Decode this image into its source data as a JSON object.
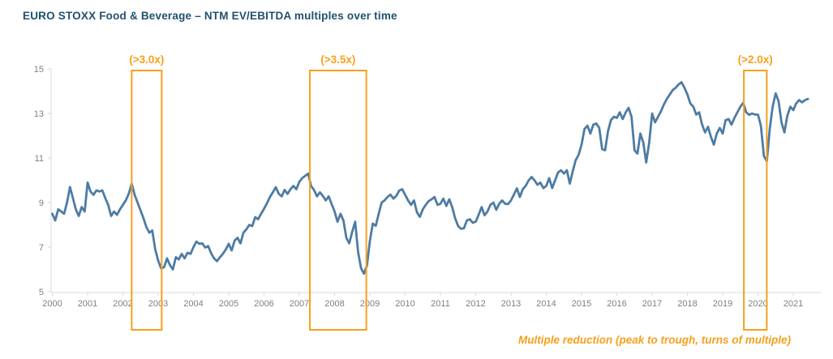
{
  "page": {
    "title": "EURO STOXX Food & Beverage – NTM EV/EBITDA multiples over time",
    "footnote": "Multiple reduction (peak to trough, turns of multiple)"
  },
  "colors": {
    "title": "#20516f",
    "line": "#4d7ca4",
    "orange": "#f7a01b",
    "axis": "#d9d9d9",
    "tick_label": "#7f7f7f"
  },
  "chart_data": {
    "type": "line",
    "title": "EURO STOXX Food & Beverage – NTM EV/EBITDA multiples over time",
    "xlabel": "",
    "ylabel": "",
    "ylim": [
      5,
      15
    ],
    "yticks": [
      5,
      7,
      9,
      11,
      13,
      15
    ],
    "xticks": [
      2000,
      2001,
      2002,
      2003,
      2004,
      2005,
      2006,
      2007,
      2008,
      2009,
      2010,
      2011,
      2012,
      2013,
      2014,
      2015,
      2016,
      2017,
      2018,
      2019,
      2020,
      2021
    ],
    "grid": false,
    "legend": false,
    "series": [
      {
        "name": "EURO STOXX Food & Beverage NTM EV/EBITDA multiple",
        "x_monthly_from": 2000,
        "values": [
          8.5,
          8.2,
          8.7,
          8.6,
          8.5,
          9.0,
          9.7,
          9.2,
          8.7,
          8.4,
          8.8,
          8.6,
          9.9,
          9.5,
          9.35,
          9.55,
          9.5,
          9.55,
          9.2,
          8.9,
          8.4,
          8.6,
          8.45,
          8.7,
          8.9,
          9.1,
          9.4,
          9.85,
          9.35,
          9.0,
          8.65,
          8.3,
          7.9,
          7.65,
          7.75,
          6.9,
          6.4,
          6.05,
          6.1,
          6.5,
          6.2,
          6.0,
          6.55,
          6.45,
          6.7,
          6.5,
          6.75,
          6.7,
          7.0,
          7.25,
          7.15,
          7.17,
          6.98,
          7.05,
          6.73,
          6.5,
          6.37,
          6.55,
          6.7,
          6.9,
          7.15,
          6.85,
          7.3,
          7.42,
          7.17,
          7.65,
          7.8,
          8.0,
          7.95,
          8.35,
          8.25,
          8.5,
          8.72,
          8.97,
          9.25,
          9.46,
          9.69,
          9.4,
          9.28,
          9.57,
          9.39,
          9.6,
          9.75,
          9.6,
          9.93,
          10.1,
          10.2,
          10.3,
          9.75,
          9.57,
          9.28,
          9.46,
          9.3,
          9.1,
          9.28,
          8.93,
          8.6,
          8.14,
          8.5,
          8.2,
          7.42,
          7.17,
          7.7,
          8.14,
          6.78,
          6.06,
          5.81,
          6.17,
          7.28,
          8.06,
          7.96,
          8.5,
          9.0,
          9.1,
          9.25,
          9.36,
          9.18,
          9.3,
          9.54,
          9.6,
          9.35,
          9.1,
          8.9,
          9.1,
          8.57,
          8.36,
          8.7,
          8.9,
          9.07,
          9.15,
          9.25,
          8.9,
          8.95,
          9.18,
          8.85,
          9.15,
          8.8,
          8.3,
          7.95,
          7.82,
          7.85,
          8.2,
          8.25,
          8.1,
          8.14,
          8.45,
          8.8,
          8.43,
          8.6,
          8.9,
          9.0,
          8.68,
          8.95,
          9.1,
          8.95,
          8.93,
          9.1,
          9.36,
          9.64,
          9.25,
          9.6,
          9.75,
          10.0,
          10.15,
          10.0,
          9.8,
          9.9,
          9.65,
          9.75,
          10.1,
          9.65,
          10.0,
          10.35,
          10.45,
          10.3,
          10.45,
          9.85,
          10.4,
          10.9,
          11.15,
          11.6,
          12.3,
          12.45,
          12.1,
          12.5,
          12.55,
          12.35,
          11.4,
          11.35,
          12.2,
          12.7,
          12.85,
          12.8,
          13.05,
          12.75,
          13.05,
          13.25,
          12.85,
          11.35,
          11.2,
          12.1,
          11.7,
          10.8,
          11.7,
          13.0,
          12.6,
          12.85,
          13.1,
          13.4,
          13.65,
          13.85,
          14.05,
          14.15,
          14.3,
          14.4,
          14.15,
          13.85,
          13.45,
          13.3,
          12.95,
          13.05,
          12.5,
          12.15,
          12.4,
          11.95,
          11.6,
          12.1,
          12.35,
          12.1,
          12.7,
          12.75,
          12.5,
          12.8,
          13.05,
          13.3,
          13.48,
          13.05,
          12.94,
          13.0,
          12.95,
          12.95,
          12.45,
          11.1,
          10.85,
          12.3,
          13.3,
          13.9,
          13.55,
          12.6,
          12.15,
          12.9,
          13.3,
          13.15,
          13.45,
          13.6,
          13.5,
          13.6,
          13.65
        ]
      }
    ],
    "annotations": {
      "highlight_boxes": [
        {
          "label": "(>3.0x)",
          "x_from": 2002.25,
          "x_to": 2003.1
        },
        {
          "label": "(>3.5x)",
          "x_from": 2007.3,
          "x_to": 2008.9
        },
        {
          "label": "(>2.0x)",
          "x_from": 2019.6,
          "x_to": 2020.25
        }
      ],
      "footnote": "Multiple reduction (peak to trough, turns of multiple)"
    }
  }
}
